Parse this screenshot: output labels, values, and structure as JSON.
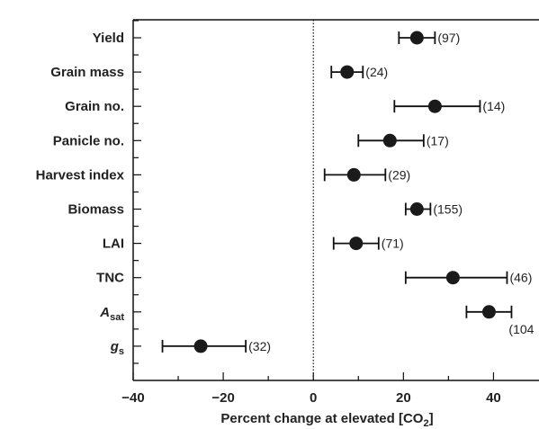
{
  "chart_data": {
    "type": "scatter",
    "subtype": "forest-plot",
    "xlabel": "Percent change at elevated [CO₂]",
    "xlim": [
      -40,
      50
    ],
    "xticks": [
      -40,
      -20,
      0,
      20,
      40
    ],
    "reference_line_x": 0,
    "grid": false,
    "series": [
      {
        "points": [
          {
            "label": "Yield",
            "mean": 23,
            "ci_low": 19,
            "ci_high": 27,
            "n": "(97)"
          },
          {
            "label": "Grain mass",
            "mean": 7.5,
            "ci_low": 4,
            "ci_high": 11,
            "n": "(24)"
          },
          {
            "label": "Grain no.",
            "mean": 27,
            "ci_low": 18,
            "ci_high": 37,
            "n": "(14)"
          },
          {
            "label": "Panicle no.",
            "mean": 17,
            "ci_low": 10,
            "ci_high": 24.5,
            "n": "(17)"
          },
          {
            "label": "Harvest index",
            "mean": 9,
            "ci_low": 2.5,
            "ci_high": 16,
            "n": "(29)"
          },
          {
            "label": "Biomass",
            "mean": 23,
            "ci_low": 20.5,
            "ci_high": 26,
            "n": "(155)"
          },
          {
            "label": "LAI",
            "mean": 9.5,
            "ci_low": 4.5,
            "ci_high": 14.5,
            "n": "(71)"
          },
          {
            "label": "TNC",
            "mean": 31,
            "ci_low": 20.5,
            "ci_high": 43,
            "n": "(46)"
          },
          {
            "label": "A",
            "label_sub": "sat",
            "italic": true,
            "mean": 39,
            "ci_low": 34,
            "ci_high": 44,
            "n": "(104"
          },
          {
            "label": "g",
            "label_sub": "s",
            "italic": true,
            "mean": -25,
            "ci_low": -33.5,
            "ci_high": -15,
            "n": "(32)"
          }
        ]
      }
    ]
  }
}
